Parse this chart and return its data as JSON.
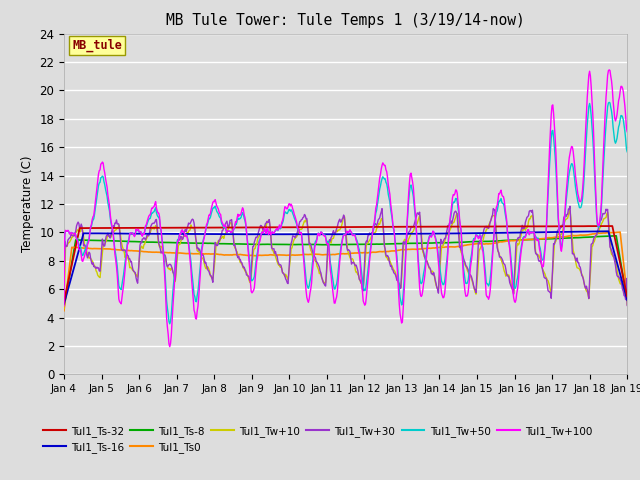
{
  "title": "MB Tule Tower: Tule Temps 1 (3/19/14-now)",
  "ylabel": "Temperature (C)",
  "xlim": [
    0,
    15
  ],
  "ylim": [
    0,
    24
  ],
  "yticks": [
    0,
    2,
    4,
    6,
    8,
    10,
    12,
    14,
    16,
    18,
    20,
    22,
    24
  ],
  "xtick_labels": [
    "Jan 4",
    "Jan 5",
    "Jan 6",
    "Jan 7",
    "Jan 8",
    "Jan 9",
    "Jan 10",
    "Jan 11",
    "Jan 12",
    "Jan 13",
    "Jan 14",
    "Jan 15",
    "Jan 16",
    "Jan 17",
    "Jan 18",
    "Jan 19"
  ],
  "bg_color": "#dddddd",
  "plot_bg_color": "#dddddd",
  "label_box": "MB_tule",
  "label_box_color": "#ffff99",
  "label_box_text_color": "#880000",
  "series_colors": {
    "Tul1_Ts-32": "#cc0000",
    "Tul1_Ts-16": "#0000cc",
    "Tul1_Ts-8": "#00aa00",
    "Tul1_Ts0": "#ff8800",
    "Tul1_Tw+10": "#cccc00",
    "Tul1_Tw+30": "#9933cc",
    "Tul1_Tw+50": "#00cccc",
    "Tul1_Tw+100": "#ff00ff"
  },
  "legend_order": [
    "Tul1_Ts-32",
    "Tul1_Ts-16",
    "Tul1_Ts-8",
    "Tul1_Ts0",
    "Tul1_Tw+10",
    "Tul1_Tw+30",
    "Tul1_Tw+50",
    "Tul1_Tw+100"
  ]
}
